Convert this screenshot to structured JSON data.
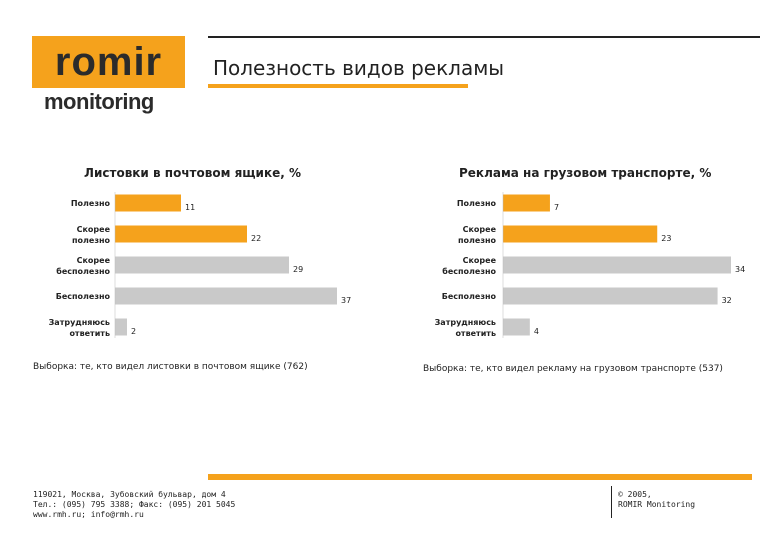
{
  "header": {
    "logo_word": "romir",
    "logo_sub": "monitoring",
    "title": "Полезность видов рекламы"
  },
  "colors": {
    "accent": "#f5a21c",
    "grey_bar": "#c9c9c9"
  },
  "chart_data": [
    {
      "type": "bar",
      "orientation": "horizontal",
      "title": "Листовки в почтовом ящике, %",
      "categories": [
        "Полезно",
        "Скорее полезно",
        "Скорее бесполезно",
        "Бесполезно",
        "Затрудняюсь ответить"
      ],
      "values": [
        11,
        22,
        29,
        37,
        2
      ],
      "bar_colors": [
        "#f5a21c",
        "#f5a21c",
        "#c9c9c9",
        "#c9c9c9",
        "#c9c9c9"
      ],
      "xlim": [
        0,
        37
      ],
      "grid": false
    },
    {
      "type": "bar",
      "orientation": "horizontal",
      "title": "Реклама на грузовом транспорте, %",
      "categories": [
        "Полезно",
        "Скорее полезно",
        "Скорее бесполезно",
        "Бесполезно",
        "Затрудняюсь ответить"
      ],
      "values": [
        7,
        23,
        34,
        32,
        4
      ],
      "bar_colors": [
        "#f5a21c",
        "#f5a21c",
        "#c9c9c9",
        "#c9c9c9",
        "#c9c9c9"
      ],
      "xlim": [
        0,
        34
      ],
      "grid": false
    }
  ],
  "samples": {
    "left": "Выборка: те, кто видел листовки в почтовом ящике (762)",
    "right": "Выборка: те, кто видел рекламу на грузовом транспорте (537)"
  },
  "footer": {
    "address_line1": "119021, Москва, Зубовский бульвар, дом 4",
    "address_line2": "Тел.: (095) 795 3388; Факс: (095) 201 5045",
    "address_line3": "www.rmh.ru; info@rmh.ru",
    "copyright_line1": "© 2005,",
    "copyright_line2": "ROMIR Monitoring"
  }
}
